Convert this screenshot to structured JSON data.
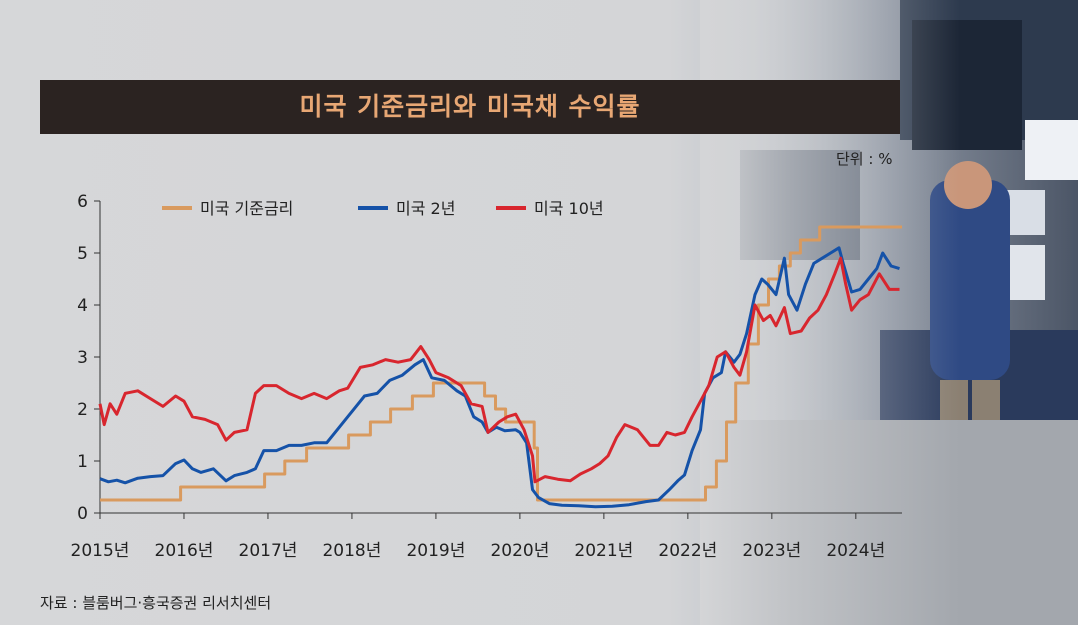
{
  "header": {
    "title": "미국 기준금리와 미국채 수익률",
    "unit": "단위 : %",
    "source": "자료 : 블룸버그·흥국증권 리서치센터"
  },
  "colors": {
    "fed_rate": "#d99a5e",
    "us2y": "#1552a8",
    "us10y": "#d8262e"
  },
  "chart_data": {
    "type": "line",
    "title": "미국 기준금리와 미국채 수익률",
    "ylabel": "",
    "xlabel": "",
    "ylim": [
      0,
      6
    ],
    "xlim": [
      2015.0,
      2024.55
    ],
    "yticks": [
      "0",
      "1",
      "2",
      "3",
      "4",
      "5",
      "6"
    ],
    "xticks": [
      {
        "x": 2015,
        "label": "2015년"
      },
      {
        "x": 2016,
        "label": "2016년"
      },
      {
        "x": 2017,
        "label": "2017년"
      },
      {
        "x": 2018,
        "label": "2018년"
      },
      {
        "x": 2019,
        "label": "2019년"
      },
      {
        "x": 2020,
        "label": "2020년"
      },
      {
        "x": 2021,
        "label": "2021년"
      },
      {
        "x": 2022,
        "label": "2022년"
      },
      {
        "x": 2023,
        "label": "2023년"
      },
      {
        "x": 2024,
        "label": "2024년"
      }
    ],
    "legend_position": "top",
    "series": [
      {
        "name": "미국 기준금리",
        "step": true,
        "color": "#d99a5e",
        "points": [
          [
            2015.0,
            0.25
          ],
          [
            2015.96,
            0.25
          ],
          [
            2015.96,
            0.5
          ],
          [
            2016.96,
            0.5
          ],
          [
            2016.96,
            0.75
          ],
          [
            2017.2,
            0.75
          ],
          [
            2017.2,
            1.0
          ],
          [
            2017.46,
            1.0
          ],
          [
            2017.46,
            1.25
          ],
          [
            2017.96,
            1.25
          ],
          [
            2017.96,
            1.5
          ],
          [
            2018.22,
            1.5
          ],
          [
            2018.22,
            1.75
          ],
          [
            2018.46,
            1.75
          ],
          [
            2018.46,
            2.0
          ],
          [
            2018.72,
            2.0
          ],
          [
            2018.72,
            2.25
          ],
          [
            2018.97,
            2.25
          ],
          [
            2018.97,
            2.5
          ],
          [
            2019.58,
            2.5
          ],
          [
            2019.58,
            2.25
          ],
          [
            2019.71,
            2.25
          ],
          [
            2019.71,
            2.0
          ],
          [
            2019.83,
            2.0
          ],
          [
            2019.83,
            1.75
          ],
          [
            2020.17,
            1.75
          ],
          [
            2020.17,
            1.25
          ],
          [
            2020.21,
            1.25
          ],
          [
            2020.21,
            0.25
          ],
          [
            2022.21,
            0.25
          ],
          [
            2022.21,
            0.5
          ],
          [
            2022.34,
            0.5
          ],
          [
            2022.34,
            1.0
          ],
          [
            2022.46,
            1.0
          ],
          [
            2022.46,
            1.75
          ],
          [
            2022.57,
            1.75
          ],
          [
            2022.57,
            2.5
          ],
          [
            2022.72,
            2.5
          ],
          [
            2022.72,
            3.25
          ],
          [
            2022.84,
            3.25
          ],
          [
            2022.84,
            4.0
          ],
          [
            2022.96,
            4.0
          ],
          [
            2022.96,
            4.5
          ],
          [
            2023.09,
            4.5
          ],
          [
            2023.09,
            4.75
          ],
          [
            2023.22,
            4.75
          ],
          [
            2023.22,
            5.0
          ],
          [
            2023.34,
            5.0
          ],
          [
            2023.34,
            5.25
          ],
          [
            2023.57,
            5.25
          ],
          [
            2023.57,
            5.5
          ],
          [
            2024.55,
            5.5
          ]
        ]
      },
      {
        "name": "미국 2년",
        "color": "#1552a8",
        "points": [
          [
            2015.0,
            0.66
          ],
          [
            2015.1,
            0.6
          ],
          [
            2015.2,
            0.63
          ],
          [
            2015.3,
            0.58
          ],
          [
            2015.45,
            0.67
          ],
          [
            2015.6,
            0.7
          ],
          [
            2015.75,
            0.72
          ],
          [
            2015.9,
            0.95
          ],
          [
            2016.0,
            1.02
          ],
          [
            2016.1,
            0.85
          ],
          [
            2016.2,
            0.78
          ],
          [
            2016.35,
            0.85
          ],
          [
            2016.5,
            0.62
          ],
          [
            2016.6,
            0.72
          ],
          [
            2016.75,
            0.78
          ],
          [
            2016.85,
            0.85
          ],
          [
            2016.95,
            1.2
          ],
          [
            2017.1,
            1.2
          ],
          [
            2017.25,
            1.3
          ],
          [
            2017.4,
            1.3
          ],
          [
            2017.55,
            1.35
          ],
          [
            2017.7,
            1.35
          ],
          [
            2017.8,
            1.55
          ],
          [
            2017.95,
            1.85
          ],
          [
            2018.05,
            2.05
          ],
          [
            2018.15,
            2.25
          ],
          [
            2018.3,
            2.3
          ],
          [
            2018.45,
            2.55
          ],
          [
            2018.6,
            2.65
          ],
          [
            2018.75,
            2.85
          ],
          [
            2018.85,
            2.95
          ],
          [
            2018.95,
            2.6
          ],
          [
            2019.1,
            2.55
          ],
          [
            2019.25,
            2.35
          ],
          [
            2019.35,
            2.25
          ],
          [
            2019.45,
            1.85
          ],
          [
            2019.55,
            1.75
          ],
          [
            2019.62,
            1.55
          ],
          [
            2019.72,
            1.65
          ],
          [
            2019.82,
            1.58
          ],
          [
            2019.95,
            1.6
          ],
          [
            2020.0,
            1.55
          ],
          [
            2020.08,
            1.35
          ],
          [
            2020.15,
            0.45
          ],
          [
            2020.22,
            0.3
          ],
          [
            2020.35,
            0.18
          ],
          [
            2020.5,
            0.15
          ],
          [
            2020.7,
            0.14
          ],
          [
            2020.9,
            0.12
          ],
          [
            2021.1,
            0.13
          ],
          [
            2021.3,
            0.16
          ],
          [
            2021.5,
            0.22
          ],
          [
            2021.65,
            0.25
          ],
          [
            2021.78,
            0.45
          ],
          [
            2021.88,
            0.62
          ],
          [
            2021.96,
            0.73
          ],
          [
            2022.05,
            1.2
          ],
          [
            2022.15,
            1.6
          ],
          [
            2022.2,
            2.3
          ],
          [
            2022.3,
            2.6
          ],
          [
            2022.4,
            2.7
          ],
          [
            2022.45,
            3.1
          ],
          [
            2022.55,
            2.9
          ],
          [
            2022.62,
            3.05
          ],
          [
            2022.7,
            3.45
          ],
          [
            2022.8,
            4.2
          ],
          [
            2022.88,
            4.5
          ],
          [
            2022.95,
            4.4
          ],
          [
            2023.05,
            4.2
          ],
          [
            2023.15,
            4.9
          ],
          [
            2023.2,
            4.2
          ],
          [
            2023.3,
            3.9
          ],
          [
            2023.4,
            4.4
          ],
          [
            2023.5,
            4.8
          ],
          [
            2023.6,
            4.9
          ],
          [
            2023.7,
            5.0
          ],
          [
            2023.8,
            5.1
          ],
          [
            2023.85,
            4.8
          ],
          [
            2023.95,
            4.25
          ],
          [
            2024.05,
            4.3
          ],
          [
            2024.15,
            4.5
          ],
          [
            2024.25,
            4.7
          ],
          [
            2024.32,
            5.0
          ],
          [
            2024.42,
            4.75
          ],
          [
            2024.52,
            4.7
          ]
        ]
      },
      {
        "name": "미국 10년",
        "color": "#d8262e",
        "points": [
          [
            2015.0,
            2.1
          ],
          [
            2015.05,
            1.7
          ],
          [
            2015.12,
            2.1
          ],
          [
            2015.2,
            1.9
          ],
          [
            2015.3,
            2.3
          ],
          [
            2015.45,
            2.35
          ],
          [
            2015.6,
            2.2
          ],
          [
            2015.75,
            2.05
          ],
          [
            2015.9,
            2.25
          ],
          [
            2016.0,
            2.15
          ],
          [
            2016.1,
            1.85
          ],
          [
            2016.25,
            1.8
          ],
          [
            2016.4,
            1.7
          ],
          [
            2016.5,
            1.4
          ],
          [
            2016.6,
            1.55
          ],
          [
            2016.75,
            1.6
          ],
          [
            2016.85,
            2.3
          ],
          [
            2016.95,
            2.45
          ],
          [
            2017.1,
            2.45
          ],
          [
            2017.25,
            2.3
          ],
          [
            2017.4,
            2.2
          ],
          [
            2017.55,
            2.3
          ],
          [
            2017.7,
            2.2
          ],
          [
            2017.85,
            2.35
          ],
          [
            2017.95,
            2.4
          ],
          [
            2018.1,
            2.8
          ],
          [
            2018.25,
            2.85
          ],
          [
            2018.4,
            2.95
          ],
          [
            2018.55,
            2.9
          ],
          [
            2018.7,
            2.95
          ],
          [
            2018.82,
            3.2
          ],
          [
            2018.92,
            2.95
          ],
          [
            2019.0,
            2.7
          ],
          [
            2019.15,
            2.6
          ],
          [
            2019.3,
            2.45
          ],
          [
            2019.42,
            2.1
          ],
          [
            2019.55,
            2.05
          ],
          [
            2019.62,
            1.55
          ],
          [
            2019.75,
            1.75
          ],
          [
            2019.85,
            1.85
          ],
          [
            2019.95,
            1.9
          ],
          [
            2020.05,
            1.6
          ],
          [
            2020.15,
            1.1
          ],
          [
            2020.18,
            0.6
          ],
          [
            2020.3,
            0.7
          ],
          [
            2020.45,
            0.65
          ],
          [
            2020.6,
            0.62
          ],
          [
            2020.72,
            0.75
          ],
          [
            2020.85,
            0.85
          ],
          [
            2020.95,
            0.95
          ],
          [
            2021.05,
            1.1
          ],
          [
            2021.15,
            1.45
          ],
          [
            2021.25,
            1.7
          ],
          [
            2021.4,
            1.6
          ],
          [
            2021.55,
            1.3
          ],
          [
            2021.65,
            1.3
          ],
          [
            2021.75,
            1.55
          ],
          [
            2021.85,
            1.5
          ],
          [
            2021.96,
            1.55
          ],
          [
            2022.05,
            1.85
          ],
          [
            2022.15,
            2.15
          ],
          [
            2022.25,
            2.45
          ],
          [
            2022.35,
            3.0
          ],
          [
            2022.45,
            3.1
          ],
          [
            2022.55,
            2.8
          ],
          [
            2022.62,
            2.65
          ],
          [
            2022.7,
            3.1
          ],
          [
            2022.8,
            4.0
          ],
          [
            2022.9,
            3.7
          ],
          [
            2022.98,
            3.8
          ],
          [
            2023.05,
            3.6
          ],
          [
            2023.15,
            3.95
          ],
          [
            2023.22,
            3.45
          ],
          [
            2023.35,
            3.5
          ],
          [
            2023.45,
            3.75
          ],
          [
            2023.55,
            3.9
          ],
          [
            2023.65,
            4.2
          ],
          [
            2023.75,
            4.6
          ],
          [
            2023.82,
            4.9
          ],
          [
            2023.88,
            4.4
          ],
          [
            2023.95,
            3.9
          ],
          [
            2024.05,
            4.1
          ],
          [
            2024.15,
            4.2
          ],
          [
            2024.28,
            4.6
          ],
          [
            2024.4,
            4.3
          ],
          [
            2024.52,
            4.3
          ]
        ]
      }
    ]
  }
}
